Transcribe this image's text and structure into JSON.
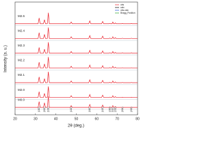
{
  "chart_data": {
    "type": "line",
    "xlabel": "2θ (deg.)",
    "ylabel": "Intensity (a. u.)",
    "xlim": [
      20,
      80
    ],
    "xticks": [
      20,
      30,
      40,
      50,
      60,
      70,
      80
    ],
    "ylim": [
      0,
      1.1
    ],
    "x": [
      20,
      31.3,
      31.8,
      32.3,
      33.9,
      34.4,
      34.9,
      35.8,
      36.3,
      36.8,
      47,
      47.5,
      48,
      56.1,
      56.6,
      57.1,
      62.4,
      62.9,
      63.4,
      66,
      66.4,
      66.8,
      67.5,
      67.9,
      68.3,
      68.7,
      69.1,
      69.5,
      72.2,
      72.6,
      73,
      76.6,
      77,
      77.4,
      80
    ],
    "series": [
      {
        "name": "M0.0",
        "color": "#e8212b",
        "values": [
          0.05,
          0.05,
          0.55,
          0.05,
          0.05,
          0.45,
          0.05,
          0.05,
          1.0,
          0.05,
          0.05,
          0.2,
          0.05,
          0.05,
          0.3,
          0.05,
          0.05,
          0.25,
          0.05,
          0.05,
          0.08,
          0.05,
          0.05,
          0.2,
          0.05,
          0.05,
          0.12,
          0.05,
          0.05,
          0.07,
          0.05,
          0.05,
          0.07,
          0.05,
          0.05
        ]
      },
      {
        "name": "M2.0",
        "color": "#e8212b",
        "values": [
          0.05,
          0.05,
          0.55,
          0.05,
          0.05,
          0.4,
          0.05,
          0.05,
          1.0,
          0.05,
          0.05,
          0.2,
          0.05,
          0.05,
          0.3,
          0.05,
          0.05,
          0.25,
          0.05,
          0.05,
          0.08,
          0.05,
          0.05,
          0.2,
          0.05,
          0.05,
          0.12,
          0.05,
          0.05,
          0.07,
          0.05,
          0.05,
          0.07,
          0.05,
          0.05
        ]
      },
      {
        "name": "M2.1",
        "color": "#e8212b",
        "values": [
          0.05,
          0.05,
          0.55,
          0.05,
          0.05,
          0.4,
          0.05,
          0.05,
          1.0,
          0.05,
          0.05,
          0.2,
          0.05,
          0.05,
          0.3,
          0.05,
          0.05,
          0.25,
          0.05,
          0.05,
          0.08,
          0.05,
          0.05,
          0.2,
          0.05,
          0.05,
          0.12,
          0.05,
          0.05,
          0.07,
          0.05,
          0.05,
          0.07,
          0.05,
          0.05
        ]
      },
      {
        "name": "M2.2",
        "color": "#e8212b",
        "values": [
          0.05,
          0.05,
          0.55,
          0.05,
          0.05,
          0.4,
          0.05,
          0.05,
          1.0,
          0.05,
          0.05,
          0.2,
          0.05,
          0.05,
          0.3,
          0.05,
          0.05,
          0.25,
          0.05,
          0.05,
          0.08,
          0.05,
          0.05,
          0.2,
          0.05,
          0.05,
          0.12,
          0.05,
          0.05,
          0.07,
          0.05,
          0.05,
          0.07,
          0.05,
          0.05
        ]
      },
      {
        "name": "M2.3",
        "color": "#e8212b",
        "values": [
          0.05,
          0.05,
          0.55,
          0.05,
          0.05,
          0.4,
          0.05,
          0.05,
          1.0,
          0.05,
          0.05,
          0.2,
          0.05,
          0.05,
          0.3,
          0.05,
          0.05,
          0.25,
          0.05,
          0.05,
          0.08,
          0.05,
          0.05,
          0.2,
          0.05,
          0.05,
          0.12,
          0.05,
          0.05,
          0.07,
          0.05,
          0.05,
          0.07,
          0.05,
          0.05
        ]
      },
      {
        "name": "M2.4",
        "color": "#e8212b",
        "values": [
          0.05,
          0.05,
          0.55,
          0.05,
          0.05,
          0.4,
          0.05,
          0.05,
          1.0,
          0.05,
          0.05,
          0.2,
          0.05,
          0.05,
          0.3,
          0.05,
          0.05,
          0.25,
          0.05,
          0.05,
          0.08,
          0.05,
          0.05,
          0.2,
          0.05,
          0.05,
          0.12,
          0.05,
          0.05,
          0.07,
          0.05,
          0.05,
          0.07,
          0.05,
          0.05
        ]
      },
      {
        "name": "M2.6",
        "color": "#e8212b",
        "values": [
          0.05,
          0.05,
          0.55,
          0.05,
          0.05,
          0.4,
          0.05,
          0.05,
          1.0,
          0.05,
          0.05,
          0.2,
          0.05,
          0.05,
          0.3,
          0.05,
          0.05,
          0.25,
          0.05,
          0.05,
          0.08,
          0.05,
          0.05,
          0.2,
          0.05,
          0.05,
          0.12,
          0.05,
          0.05,
          0.07,
          0.05,
          0.05,
          0.07,
          0.05,
          0.05
        ]
      }
    ],
    "legend": [
      {
        "text": "obs",
        "color": "#e8212b"
      },
      {
        "text": "calc",
        "color": "#000000"
      },
      {
        "text": "obs-calc",
        "color": "#1f4fd8"
      },
      {
        "text": "Bragg_Position",
        "color": "#2ca02c"
      }
    ],
    "annotations": [
      {
        "text": "(100)",
        "x": 31.8
      },
      {
        "text": "(002)",
        "x": 34.4
      },
      {
        "text": "(101)",
        "x": 36.3
      },
      {
        "text": "(102)",
        "x": 47.5
      },
      {
        "text": "(110)",
        "x": 56.6
      },
      {
        "text": "(103)",
        "x": 62.9
      },
      {
        "text": "(200)",
        "x": 66.4
      },
      {
        "text": "(112)",
        "x": 67.9
      },
      {
        "text": "(201)",
        "x": 69.1
      },
      {
        "text": "(004)",
        "x": 72.6
      },
      {
        "text": "(202)",
        "x": 77
      }
    ]
  }
}
